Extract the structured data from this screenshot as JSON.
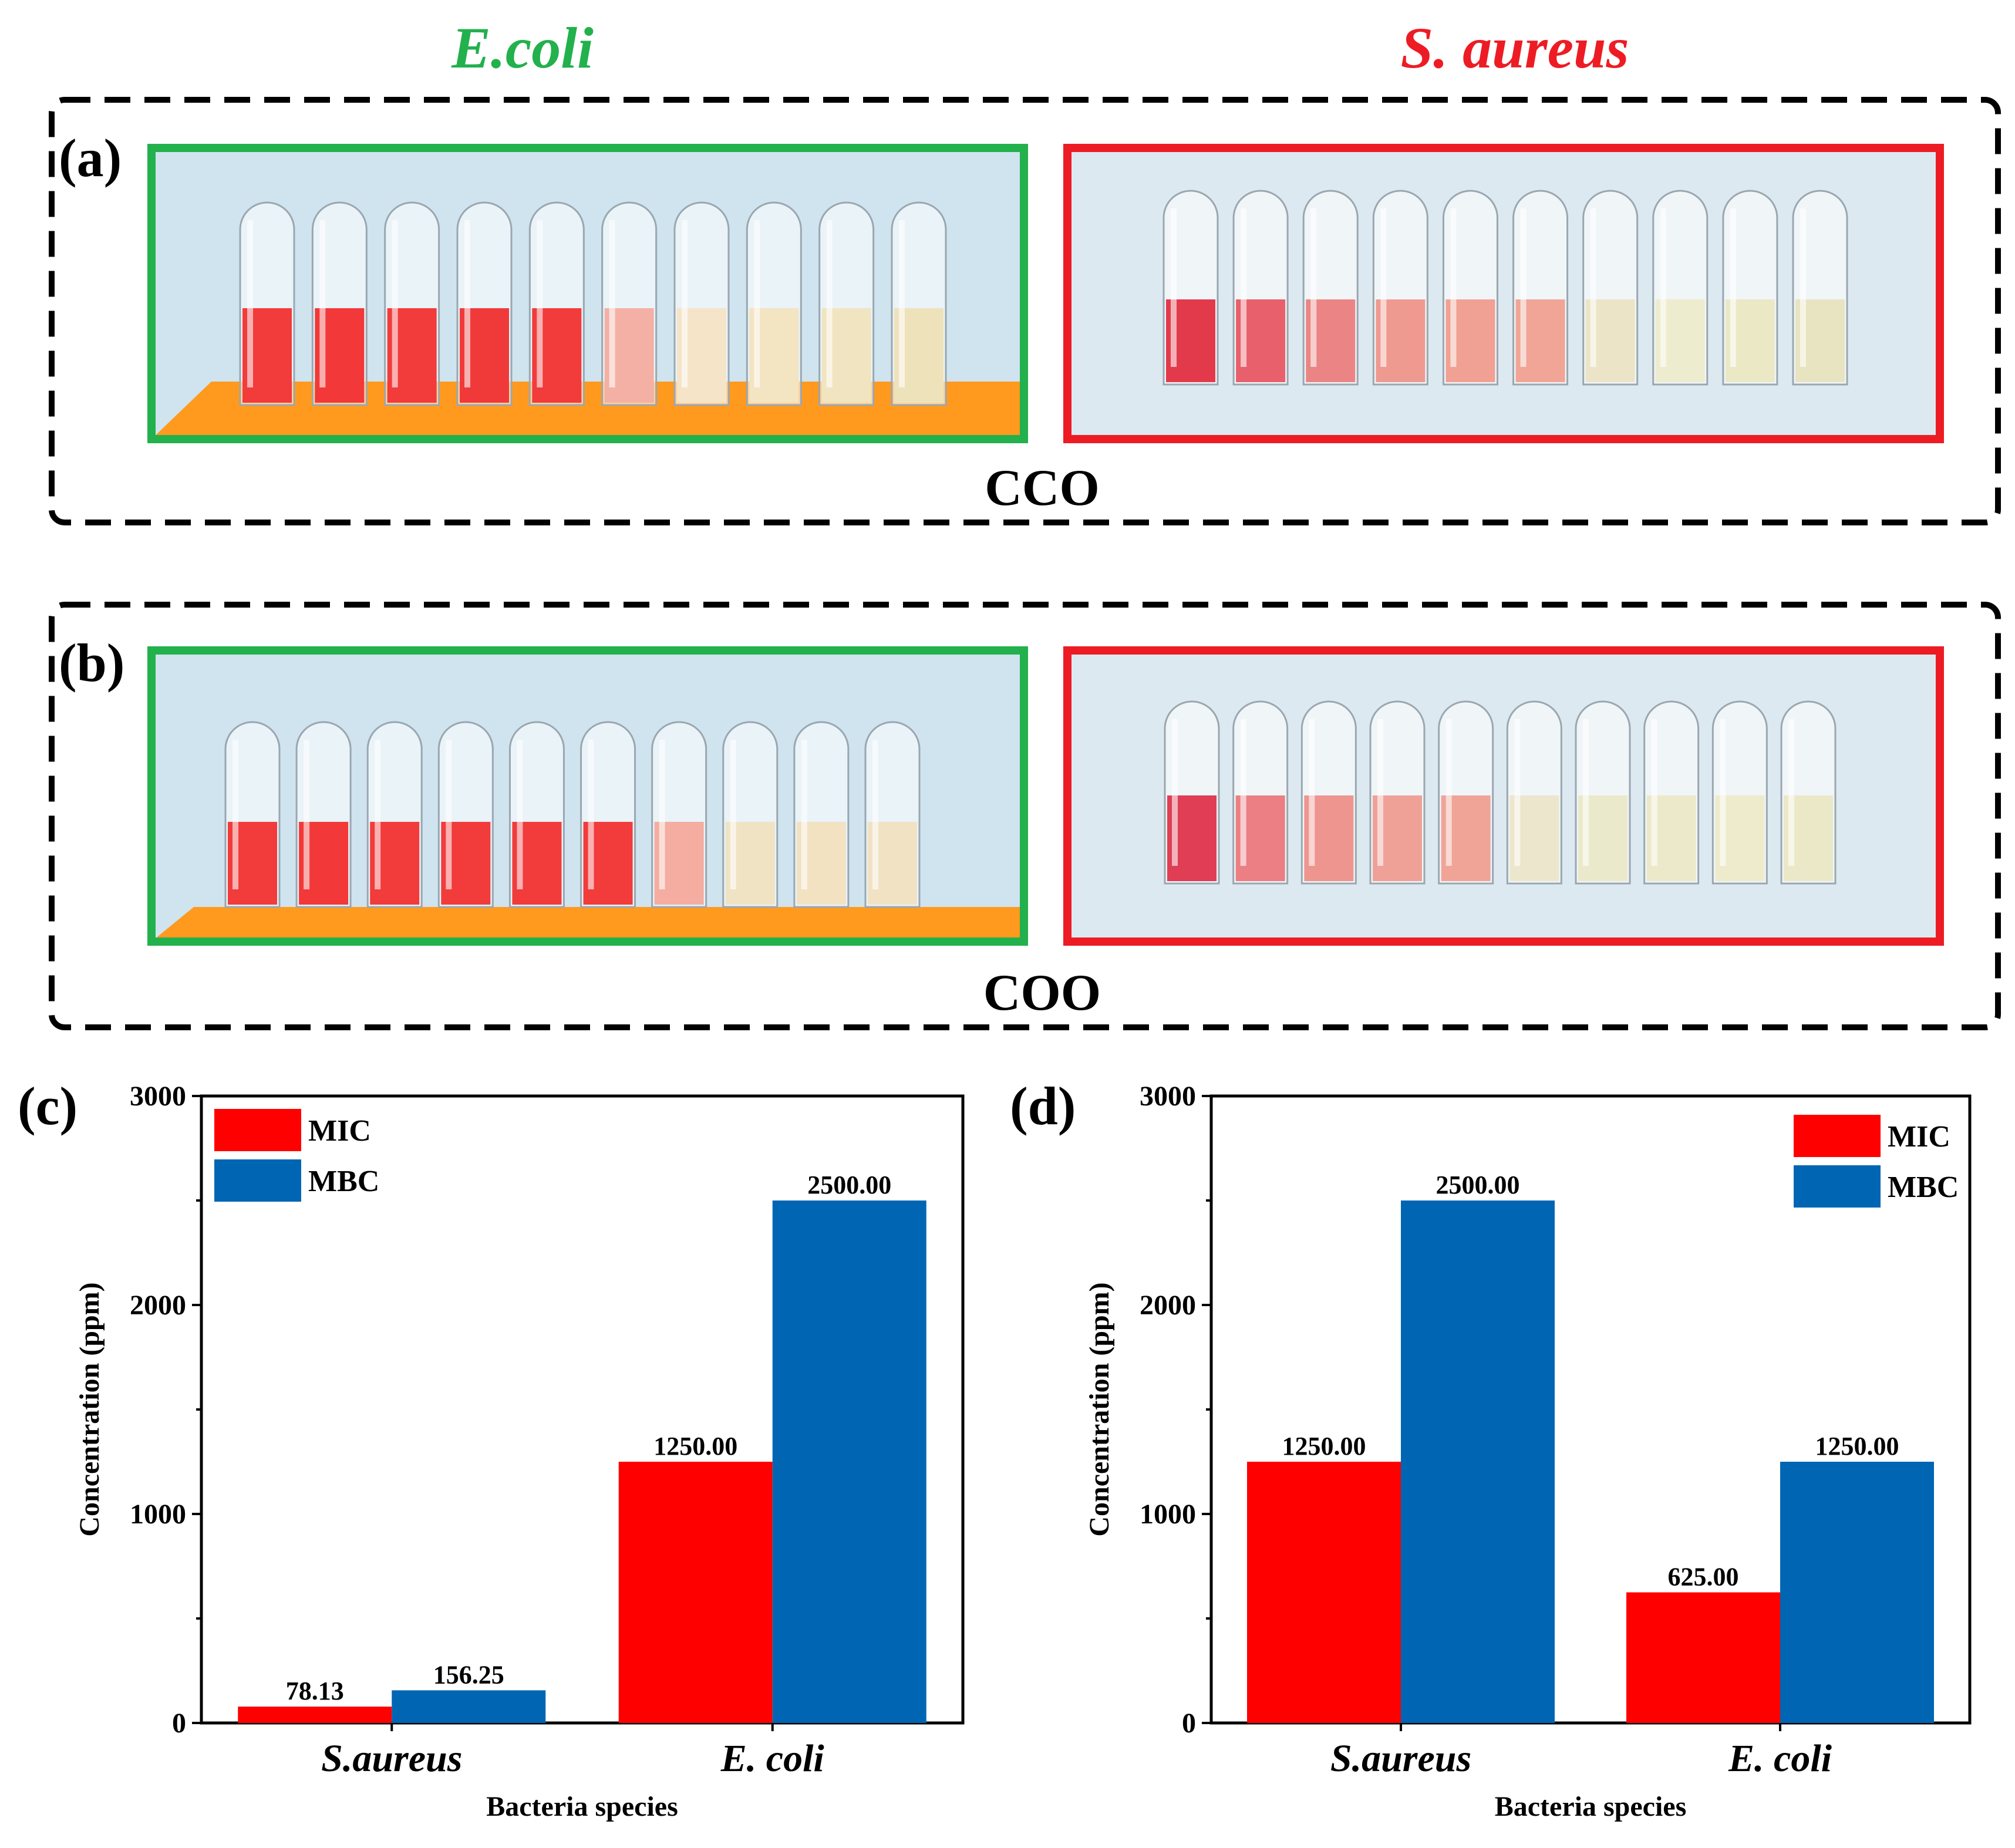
{
  "headers": {
    "left": "E.coli",
    "right": "S. aureus"
  },
  "colors": {
    "ecoli_green": "#22b14c",
    "saureus_red": "#ed1c24",
    "mic": "#ff0000",
    "mbc": "#0066b3",
    "photo_bg_left": "#cfe4ef",
    "photo_bg_right": "#dde9f0",
    "rack": "#ff9a1f"
  },
  "photo_panels": [
    {
      "id": "a",
      "label": "(a)",
      "material": "CCO",
      "ecoli_tubes": [
        "#f23b3b",
        "#f23838",
        "#f23b3b",
        "#f03a3a",
        "#f23b3b",
        "#f4b0a4",
        "#f6e4c9",
        "#f3e4c2",
        "#f1e4c0",
        "#eee2bb"
      ],
      "saureus_tubes": [
        "#e33a4b",
        "#e8606c",
        "#eb8585",
        "#ef9a90",
        "#f0a193",
        "#f0a596",
        "#ece4c6",
        "#eeecce",
        "#ebe8c6",
        "#e8e3c0"
      ]
    },
    {
      "id": "b",
      "label": "(b)",
      "material": "COO",
      "ecoli_tubes": [
        "#f23b3b",
        "#f23838",
        "#f23b3b",
        "#f23b3b",
        "#f23b3b",
        "#f23b3b",
        "#f4ada0",
        "#efe3c3",
        "#f2e2c2",
        "#f1e2c4"
      ],
      "saureus_tubes": [
        "#df3e55",
        "#eb7f84",
        "#ee9590",
        "#f0a197",
        "#f0a497",
        "#ece6cc",
        "#ebe9cb",
        "#ece9ca",
        "#eeebcd",
        "#ebe8c8"
      ]
    }
  ],
  "chart_data": [
    {
      "panel": "(c)",
      "type": "bar",
      "categories": [
        "S.aureus",
        "E. coli"
      ],
      "series": [
        {
          "name": "MIC",
          "values": [
            78.13,
            1250.0
          ],
          "labels": [
            "78.13",
            "1250.00"
          ]
        },
        {
          "name": "MBC",
          "values": [
            156.25,
            2500.0
          ],
          "labels": [
            "156.25",
            "2500.00"
          ]
        }
      ],
      "xlabel": "Bacteria species",
      "ylabel": "Concentration (ppm)",
      "ylim": [
        0,
        3000
      ],
      "yticks": [
        "0",
        "1000",
        "2000",
        "3000"
      ],
      "legend_position": "top-left"
    },
    {
      "panel": "(d)",
      "type": "bar",
      "categories": [
        "S.aureus",
        "E. coli"
      ],
      "series": [
        {
          "name": "MIC",
          "values": [
            1250.0,
            625.0
          ],
          "labels": [
            "1250.00",
            "625.00"
          ]
        },
        {
          "name": "MBC",
          "values": [
            2500.0,
            1250.0
          ],
          "labels": [
            "2500.00",
            "1250.00"
          ]
        }
      ],
      "xlabel": "Bacteria species",
      "ylabel": "Concentration (ppm)",
      "ylim": [
        0,
        3000
      ],
      "yticks": [
        "0",
        "1000",
        "2000",
        "3000"
      ],
      "legend_position": "top-right"
    }
  ]
}
